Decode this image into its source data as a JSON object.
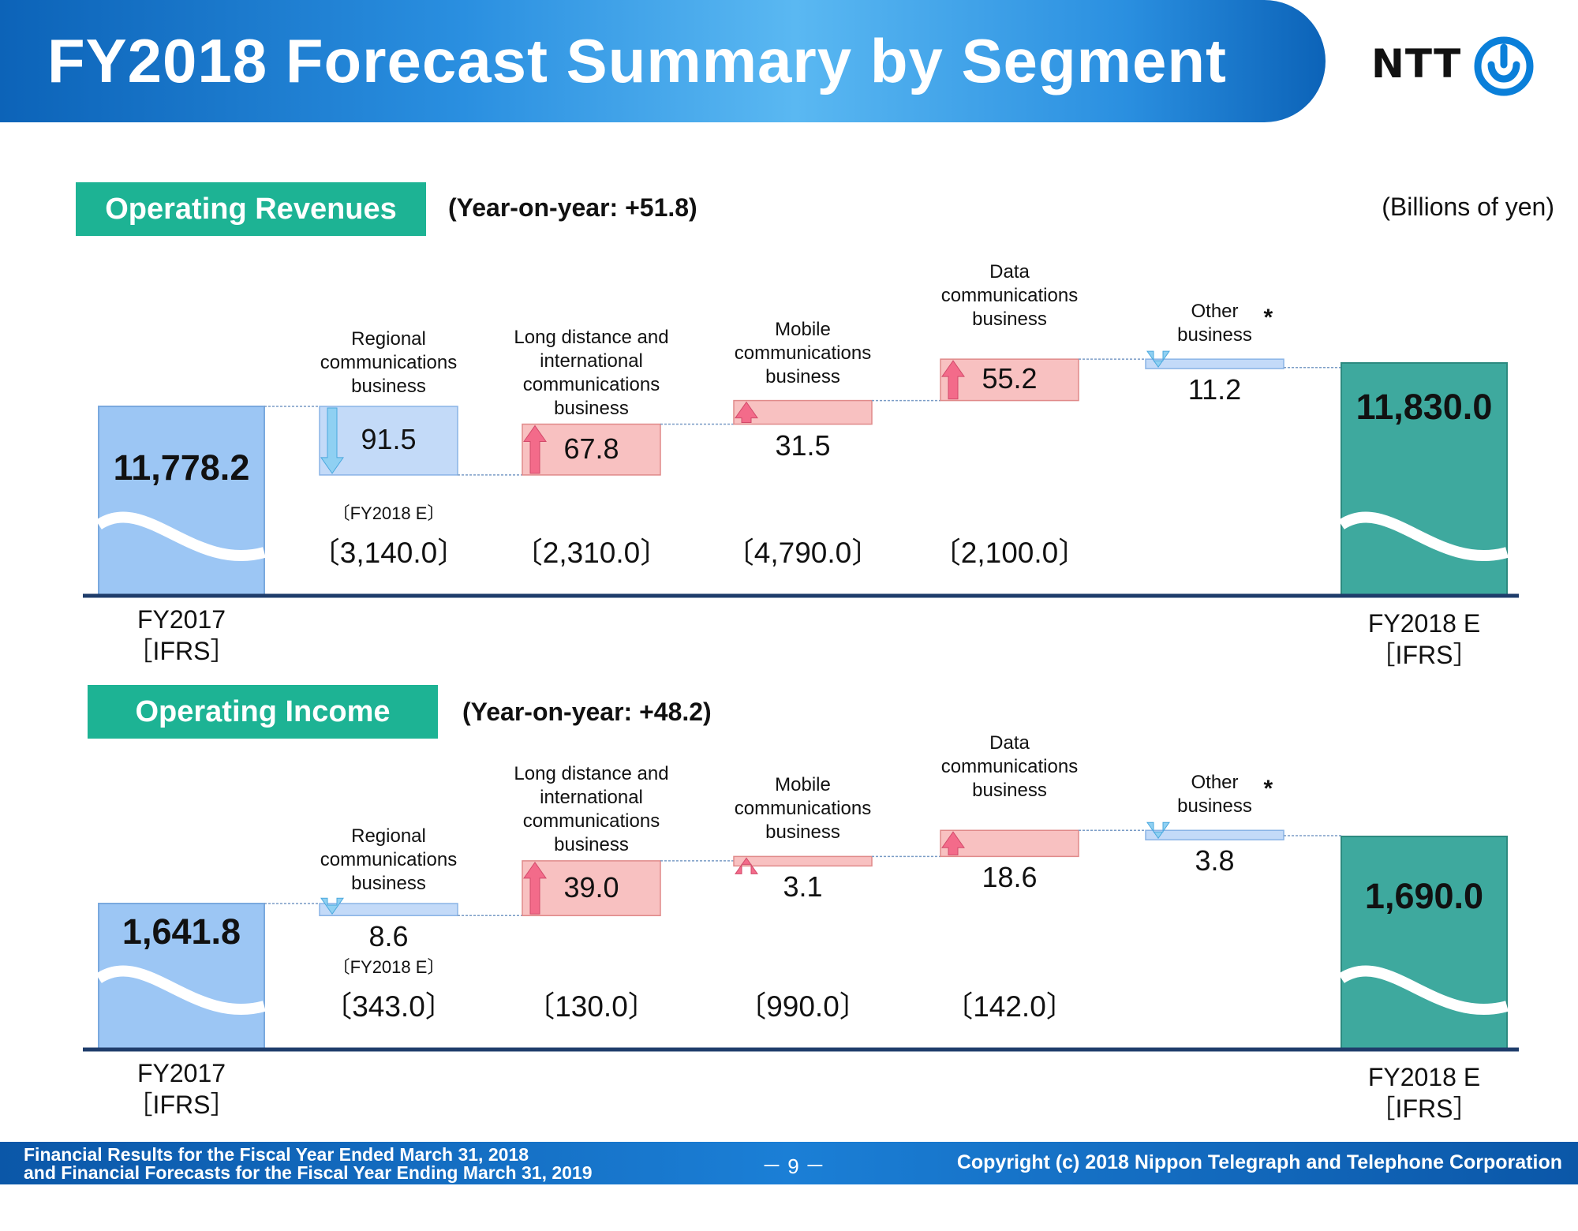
{
  "header": {
    "title": "FY2018 Forecast Summary by Segment",
    "logo_text": "NTT"
  },
  "units": "(Billions of yen)",
  "segments": [
    "Regional\ncommunications\nbusiness",
    "Long distance and\ninternational\ncommunications\nbusiness",
    "Mobile\ncommunications\nbusiness",
    "Data\ncommunications\nbusiness",
    "Other\nbusiness"
  ],
  "asterisk": "*",
  "target_sub_label": "〔FY2018 E〕",
  "colors": {
    "badge": "#1db394",
    "start_bar": "#9cc6f4",
    "end_bar": "#3ea99e",
    "up": "#f8c1c1",
    "down": "#c3daf8",
    "axis": "#1f3d6b"
  },
  "charts": [
    {
      "badge": "Operating Revenues",
      "yoy": "(Year-on-year: +51.8)",
      "start": {
        "value_label": "11,778.2",
        "year": "FY2017",
        "basis": "［IFRS］"
      },
      "end": {
        "value_label": "11,830.0",
        "year": "FY2018 E",
        "basis": "［IFRS］"
      },
      "deltas": [
        "91.5",
        "67.8",
        "31.5",
        "55.2",
        "11.2"
      ],
      "targets": [
        "〔3,140.0〕",
        "〔2,310.0〕",
        "〔4,790.0〕",
        "〔2,100.0〕",
        ""
      ]
    },
    {
      "badge": "Operating Income",
      "yoy": "(Year-on-year: +48.2)",
      "start": {
        "value_label": "1,641.8",
        "year": "FY2017",
        "basis": "［IFRS］"
      },
      "end": {
        "value_label": "1,690.0",
        "year": "FY2018 E",
        "basis": "［IFRS］"
      },
      "deltas": [
        "8.6",
        "39.0",
        "3.1",
        "18.6",
        "3.8"
      ],
      "targets": [
        "〔343.0〕",
        "〔130.0〕",
        "〔990.0〕",
        "〔142.0〕",
        ""
      ]
    }
  ],
  "chart_data": [
    {
      "type": "bar",
      "title": "Operating Revenues",
      "categories": [
        "FY2017 [IFRS]",
        "Regional communications business",
        "Long distance and international communications business",
        "Mobile communications business",
        "Data communications business",
        "Other business",
        "FY2018 E [IFRS]"
      ],
      "values": [
        11778.2,
        -91.5,
        67.8,
        31.5,
        55.2,
        -11.2,
        11830.0
      ],
      "fy2018_segment_forecast": [
        3140.0,
        2310.0,
        4790.0,
        2100.0
      ]
    },
    {
      "type": "bar",
      "title": "Operating Income",
      "categories": [
        "FY2017 [IFRS]",
        "Regional communications business",
        "Long distance and international communications business",
        "Mobile communications business",
        "Data communications business",
        "Other business",
        "FY2018 E [IFRS]"
      ],
      "values": [
        1641.8,
        -8.6,
        39.0,
        3.1,
        18.6,
        -3.8,
        1690.0
      ],
      "fy2018_segment_forecast": [
        343.0,
        130.0,
        990.0,
        142.0
      ]
    }
  ],
  "footer": {
    "left_line1": "Financial Results for the Fiscal Year Ended March 31, 2018",
    "left_line2": "and Financial Forecasts for the Fiscal Year Ending March 31, 2019",
    "page": "－ 9 －",
    "copyright": "Copyright (c) 2018  Nippon Telegraph and Telephone Corporation"
  }
}
